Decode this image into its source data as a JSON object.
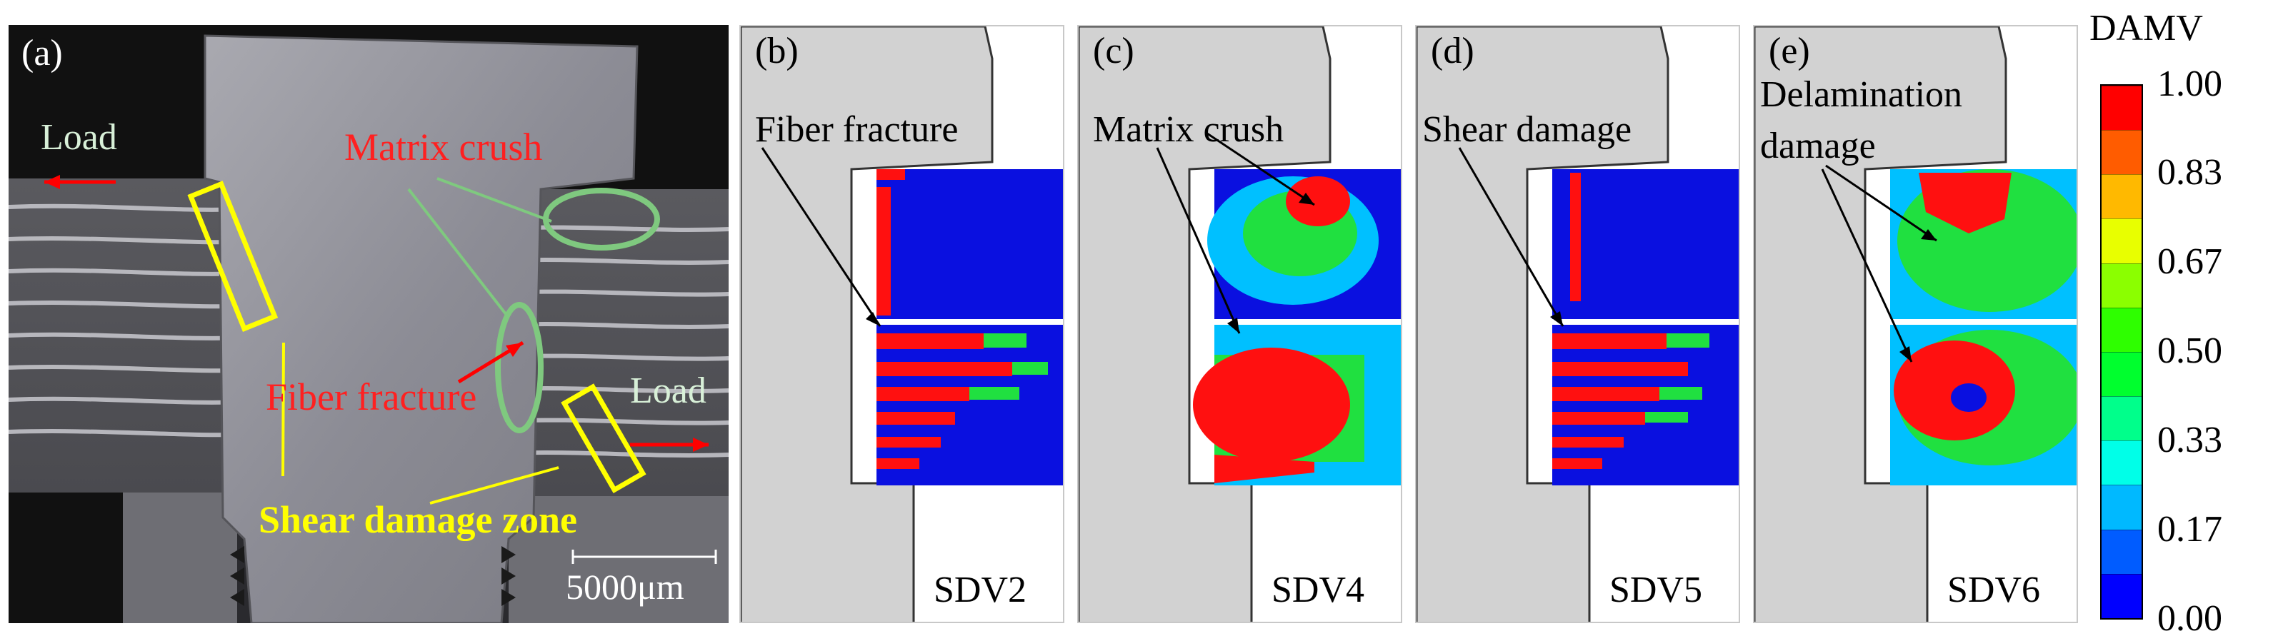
{
  "panel_a": {
    "label": "(a)",
    "load_left": "Load",
    "load_right": "Load",
    "matrix_crush": "Matrix crush",
    "fiber_fracture": "Fiber fracture",
    "shear_damage_zone": "Shear damage zone",
    "scale_bar": "5000μm"
  },
  "panels": [
    {
      "label": "(b)",
      "annotation": "Fiber fracture",
      "variable": "SDV2"
    },
    {
      "label": "(c)",
      "annotation": "Matrix crush",
      "variable": "SDV4"
    },
    {
      "label": "(d)",
      "annotation": "Shear damage",
      "variable": "SDV5"
    },
    {
      "label": "(e)",
      "annotation": "Delamination damage",
      "variable": "SDV6"
    }
  ],
  "legend": {
    "title": "DAMV",
    "ticks": [
      "1.00",
      "0.83",
      "0.67",
      "0.50",
      "0.33",
      "0.17",
      "0.00"
    ],
    "colors": [
      "#0000ff",
      "#005cff",
      "#00b9ff",
      "#00ffe8",
      "#00ff8b",
      "#00ff2e",
      "#2eff00",
      "#8bff00",
      "#e8ff00",
      "#ffb900",
      "#ff5c00",
      "#ff0000"
    ]
  }
}
